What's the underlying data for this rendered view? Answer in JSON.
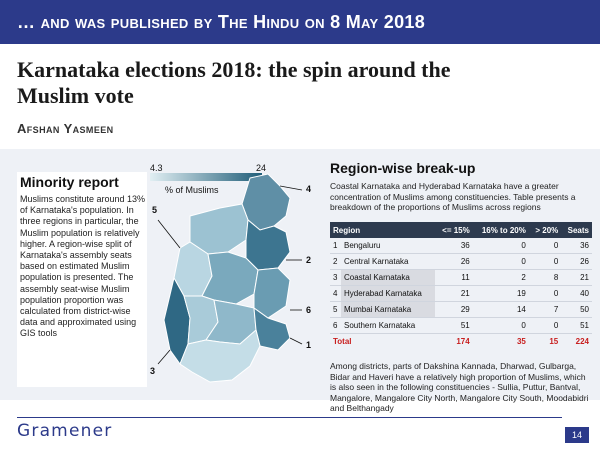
{
  "banner": "… and was published by The Hindu on 8 May 2018",
  "title": "Karnataka elections 2018: the spin around the Muslim vote",
  "author": "Afshan Yasmeen",
  "minority": {
    "title": "Minority report",
    "body": "Muslims constitute around 13% of Karnataka's population. In three regions in particular, the Muslim population is relatively higher. A region-wise split of Karnataka's assembly seats based on estimated Muslim population is presented. The assembly seat-wise Muslim population proportion was calculated from district-wise data and approximated using GIS tools"
  },
  "legend": {
    "min": "4.3",
    "max": "24",
    "label": "% of Muslims",
    "color_low": "#e1eff3",
    "color_high": "#1f5d78"
  },
  "callouts": [
    "4",
    "5",
    "2",
    "6",
    "3",
    "1"
  ],
  "breakup": {
    "title": "Region-wise break-up",
    "intro": "Coastal Karnataka and Hyderabad Karnataka have a greater concentration of Muslims among constituencies. Table presents a breakdown of the proportions of Muslims across regions",
    "columns": [
      "Region",
      "<= 15%",
      "16% to 20%",
      "> 20%",
      "Seats"
    ],
    "rows": [
      {
        "idx": "1",
        "region": "Bengaluru",
        "c1": "36",
        "c2": "0",
        "c3": "0",
        "seats": "36"
      },
      {
        "idx": "2",
        "region": "Central Karnataka",
        "c1": "26",
        "c2": "0",
        "c3": "0",
        "seats": "26"
      },
      {
        "idx": "3",
        "region": "Coastal Karnataka",
        "c1": "11",
        "c2": "2",
        "c3": "8",
        "seats": "21"
      },
      {
        "idx": "4",
        "region": "Hyderabad Karnataka",
        "c1": "21",
        "c2": "19",
        "c3": "0",
        "seats": "40"
      },
      {
        "idx": "5",
        "region": "Mumbai Karnataka",
        "c1": "29",
        "c2": "14",
        "c3": "7",
        "seats": "50"
      },
      {
        "idx": "6",
        "region": "Southern Karnataka",
        "c1": "51",
        "c2": "0",
        "c3": "0",
        "seats": "51"
      }
    ],
    "total": {
      "label": "Total",
      "c1": "174",
      "c2": "35",
      "c3": "15",
      "seats": "224"
    },
    "footnote": "Among districts, parts of Dakshina Kannada, Dharwad, Gulbarga, Bidar and Haveri have a relatively high proportion of Muslims, which is also seen in the following constituencies - Sullia, Puttur, Bantval, Mangalore, Mangalore City North, Mangalore City South, Moodabidri and Belthangady"
  },
  "footer": {
    "logo": "Gramener",
    "page": "14"
  }
}
